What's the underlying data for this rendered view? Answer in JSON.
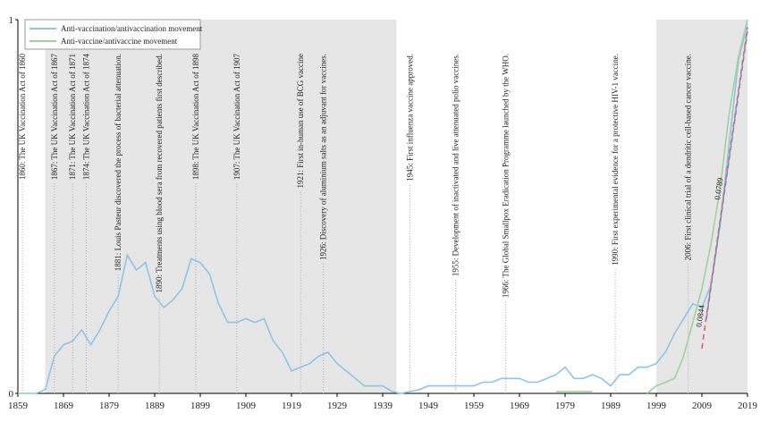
{
  "chart_data": {
    "type": "line",
    "x": [
      1859,
      1861,
      1863,
      1865,
      1867,
      1869,
      1871,
      1873,
      1875,
      1877,
      1879,
      1881,
      1883,
      1885,
      1887,
      1889,
      1891,
      1893,
      1895,
      1897,
      1899,
      1901,
      1903,
      1905,
      1907,
      1909,
      1911,
      1913,
      1915,
      1917,
      1919,
      1921,
      1923,
      1925,
      1927,
      1929,
      1931,
      1933,
      1935,
      1937,
      1939,
      1941,
      1943,
      1945,
      1947,
      1949,
      1951,
      1953,
      1955,
      1957,
      1959,
      1961,
      1963,
      1965,
      1967,
      1969,
      1971,
      1973,
      1975,
      1977,
      1979,
      1981,
      1983,
      1985,
      1987,
      1989,
      1991,
      1993,
      1995,
      1997,
      1999,
      2001,
      2003,
      2005,
      2007,
      2009,
      2011,
      2013,
      2015,
      2017,
      2019
    ],
    "series": [
      {
        "name": "Anti-vaccination/antivaccination movement",
        "color": "#8ec4e6",
        "values": [
          0,
          0,
          0,
          0.01,
          0.1,
          0.13,
          0.14,
          0.17,
          0.13,
          0.17,
          0.22,
          0.26,
          0.37,
          0.33,
          0.35,
          0.26,
          0.23,
          0.25,
          0.28,
          0.36,
          0.35,
          0.32,
          0.24,
          0.19,
          0.19,
          0.2,
          0.19,
          0.2,
          0.14,
          0.11,
          0.06,
          0.07,
          0.08,
          0.1,
          0.11,
          0.08,
          0.06,
          0.04,
          0.02,
          0.02,
          0.02,
          0.005,
          0,
          0.005,
          0.01,
          0.02,
          0.02,
          0.02,
          0.02,
          0.02,
          0.02,
          0.03,
          0.03,
          0.04,
          0.04,
          0.04,
          0.03,
          0.03,
          0.04,
          0.05,
          0.07,
          0.04,
          0.04,
          0.05,
          0.04,
          0.02,
          0.05,
          0.05,
          0.07,
          0.07,
          0.08,
          0.11,
          0.16,
          0.2,
          0.24,
          0.23,
          0.29,
          0.45,
          0.67,
          0.89,
          0.99
        ]
      },
      {
        "name": "Anti-vaccine/antivaccine movement",
        "color": "#9fd39a",
        "values": [
          null,
          null,
          null,
          null,
          null,
          null,
          null,
          null,
          null,
          null,
          null,
          null,
          null,
          null,
          null,
          null,
          null,
          null,
          null,
          null,
          null,
          null,
          null,
          null,
          null,
          null,
          null,
          null,
          null,
          null,
          null,
          null,
          null,
          null,
          null,
          null,
          null,
          null,
          null,
          null,
          null,
          null,
          null,
          null,
          null,
          null,
          null,
          null,
          null,
          null,
          null,
          null,
          null,
          null,
          null,
          null,
          null,
          null,
          null,
          0.005,
          0.005,
          0.005,
          0.005,
          0.005,
          null,
          null,
          null,
          null,
          null,
          0,
          0.02,
          0.03,
          0.04,
          0.1,
          0.19,
          0.28,
          0.4,
          0.55,
          0.75,
          0.9,
          1.0
        ]
      }
    ],
    "trend_lines": [
      {
        "label": "0.0844",
        "color": "#e06666",
        "x": [
          2009,
          2019
        ],
        "y": [
          0.12,
          0.98
        ]
      },
      {
        "label": "0.0789",
        "color": "#6c8ebf",
        "x": [
          2010,
          2019
        ],
        "y": [
          0.2,
          0.97
        ]
      }
    ],
    "shaded_regions": [
      [
        1865,
        1942
      ],
      [
        1999,
        2019
      ]
    ],
    "annotations": [
      {
        "x": 1860,
        "text": "1860: The UK Vaccination Act of 1860"
      },
      {
        "x": 1867,
        "text": "1867: The UK Vaccination Act of 1867"
      },
      {
        "x": 1871,
        "text": "1871: The UK Vaccination Act of 1871"
      },
      {
        "x": 1874,
        "text": "1874: The UK Vaccination Act of 1874"
      },
      {
        "x": 1881,
        "text": "1881: Louis Pasteur discovered the process of bacterial attenuation."
      },
      {
        "x": 1890,
        "text": "1890: Treatments using blood sera from recovered patients first described."
      },
      {
        "x": 1898,
        "text": "1898: The UK Vaccination Act of 1898"
      },
      {
        "x": 1907,
        "text": "1907: The UK Vaccination Act of 1907"
      },
      {
        "x": 1921,
        "text": "1921: First in-human use of BCG vaccine"
      },
      {
        "x": 1926,
        "text": "1926: Discovery of aluminium salts as an adjuvant for vaccines."
      },
      {
        "x": 1945,
        "text": "1945: First influenza vaccine approved."
      },
      {
        "x": 1955,
        "text": "1955: Development of inactivated and live attenuated polio vaccines."
      },
      {
        "x": 1966,
        "text": "1966: The Global Smallpox Eradication Programme launched by the WHO."
      },
      {
        "x": 1990,
        "text": "1990: First experimental evidence for a protective HIV-1 vaccine."
      },
      {
        "x": 2006,
        "text": "2006: First clinical trial of a dendritic cell-based cancer vaccine."
      }
    ],
    "xlim": [
      1859,
      2019
    ],
    "ylim": [
      0,
      1
    ],
    "xticks": [
      1859,
      1869,
      1879,
      1889,
      1899,
      1909,
      1919,
      1929,
      1939,
      1949,
      1959,
      1969,
      1979,
      1989,
      1999,
      2009,
      2019
    ],
    "yticks": [
      0,
      1
    ],
    "legend": "upper left"
  }
}
